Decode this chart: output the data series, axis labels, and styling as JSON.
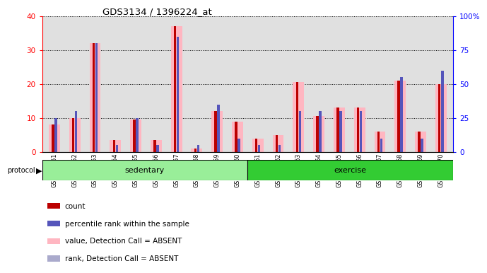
{
  "title": "GDS3134 / 1396224_at",
  "samples": [
    "GSM184851",
    "GSM184852",
    "GSM184853",
    "GSM184854",
    "GSM184855",
    "GSM184856",
    "GSM184857",
    "GSM184858",
    "GSM184859",
    "GSM184860",
    "GSM184861",
    "GSM184862",
    "GSM184863",
    "GSM184864",
    "GSM184865",
    "GSM184866",
    "GSM184867",
    "GSM184868",
    "GSM184869",
    "GSM184870"
  ],
  "pink_bars": [
    8,
    10,
    32,
    3.5,
    9.5,
    3.5,
    37,
    1,
    12,
    9,
    4,
    5,
    20.5,
    10.5,
    13,
    13,
    6,
    21,
    6,
    20
  ],
  "red_counts": [
    8,
    10,
    32,
    3.5,
    9.5,
    3.5,
    37,
    1,
    12,
    9,
    4,
    5,
    20.5,
    10.5,
    13,
    13,
    6,
    21,
    6,
    20
  ],
  "blue_ranks_pct": [
    25,
    30,
    80,
    5,
    25,
    5,
    85,
    5,
    35,
    10,
    5,
    5,
    30,
    30,
    30,
    30,
    10,
    55,
    10,
    60
  ],
  "sedentary_count": 10,
  "exercise_count": 10,
  "ylim_left": [
    0,
    40
  ],
  "ylim_right": [
    0,
    100
  ],
  "yticks_left": [
    0,
    10,
    20,
    30,
    40
  ],
  "yticks_right": [
    0,
    25,
    50,
    75,
    100
  ],
  "ytick_labels_right": [
    "0",
    "25",
    "50",
    "75",
    "100%"
  ],
  "color_pink": "#FFB6C1",
  "color_red": "#BB0000",
  "color_blue": "#5555BB",
  "color_light_blue": "#AAAACC",
  "color_sedentary": "#99EE99",
  "color_exercise": "#33CC33",
  "color_bg_plot": "#E0E0E0",
  "legend_labels": [
    "count",
    "percentile rank within the sample",
    "value, Detection Call = ABSENT",
    "rank, Detection Call = ABSENT"
  ],
  "legend_colors": [
    "#BB0000",
    "#5555BB",
    "#FFB6C1",
    "#AAAACC"
  ]
}
